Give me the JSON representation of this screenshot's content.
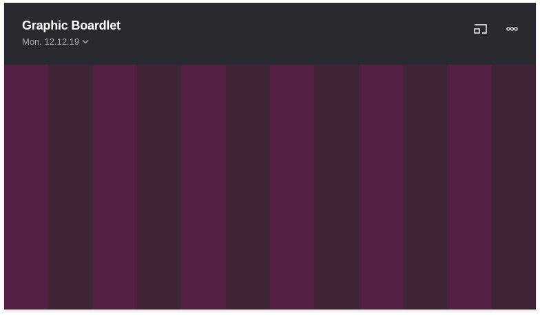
{
  "card": {
    "title": "Graphic Boardlet",
    "date": "Mon. 12.12.19",
    "date_icon": "chevron-down-icon",
    "actions": [
      {
        "name": "cast-icon"
      },
      {
        "name": "more-options-icon"
      }
    ]
  },
  "colors": {
    "header": "#292a2f",
    "stripe_a": "#541f43",
    "stripe_b": "#3f2337"
  },
  "stripe_count": 12
}
